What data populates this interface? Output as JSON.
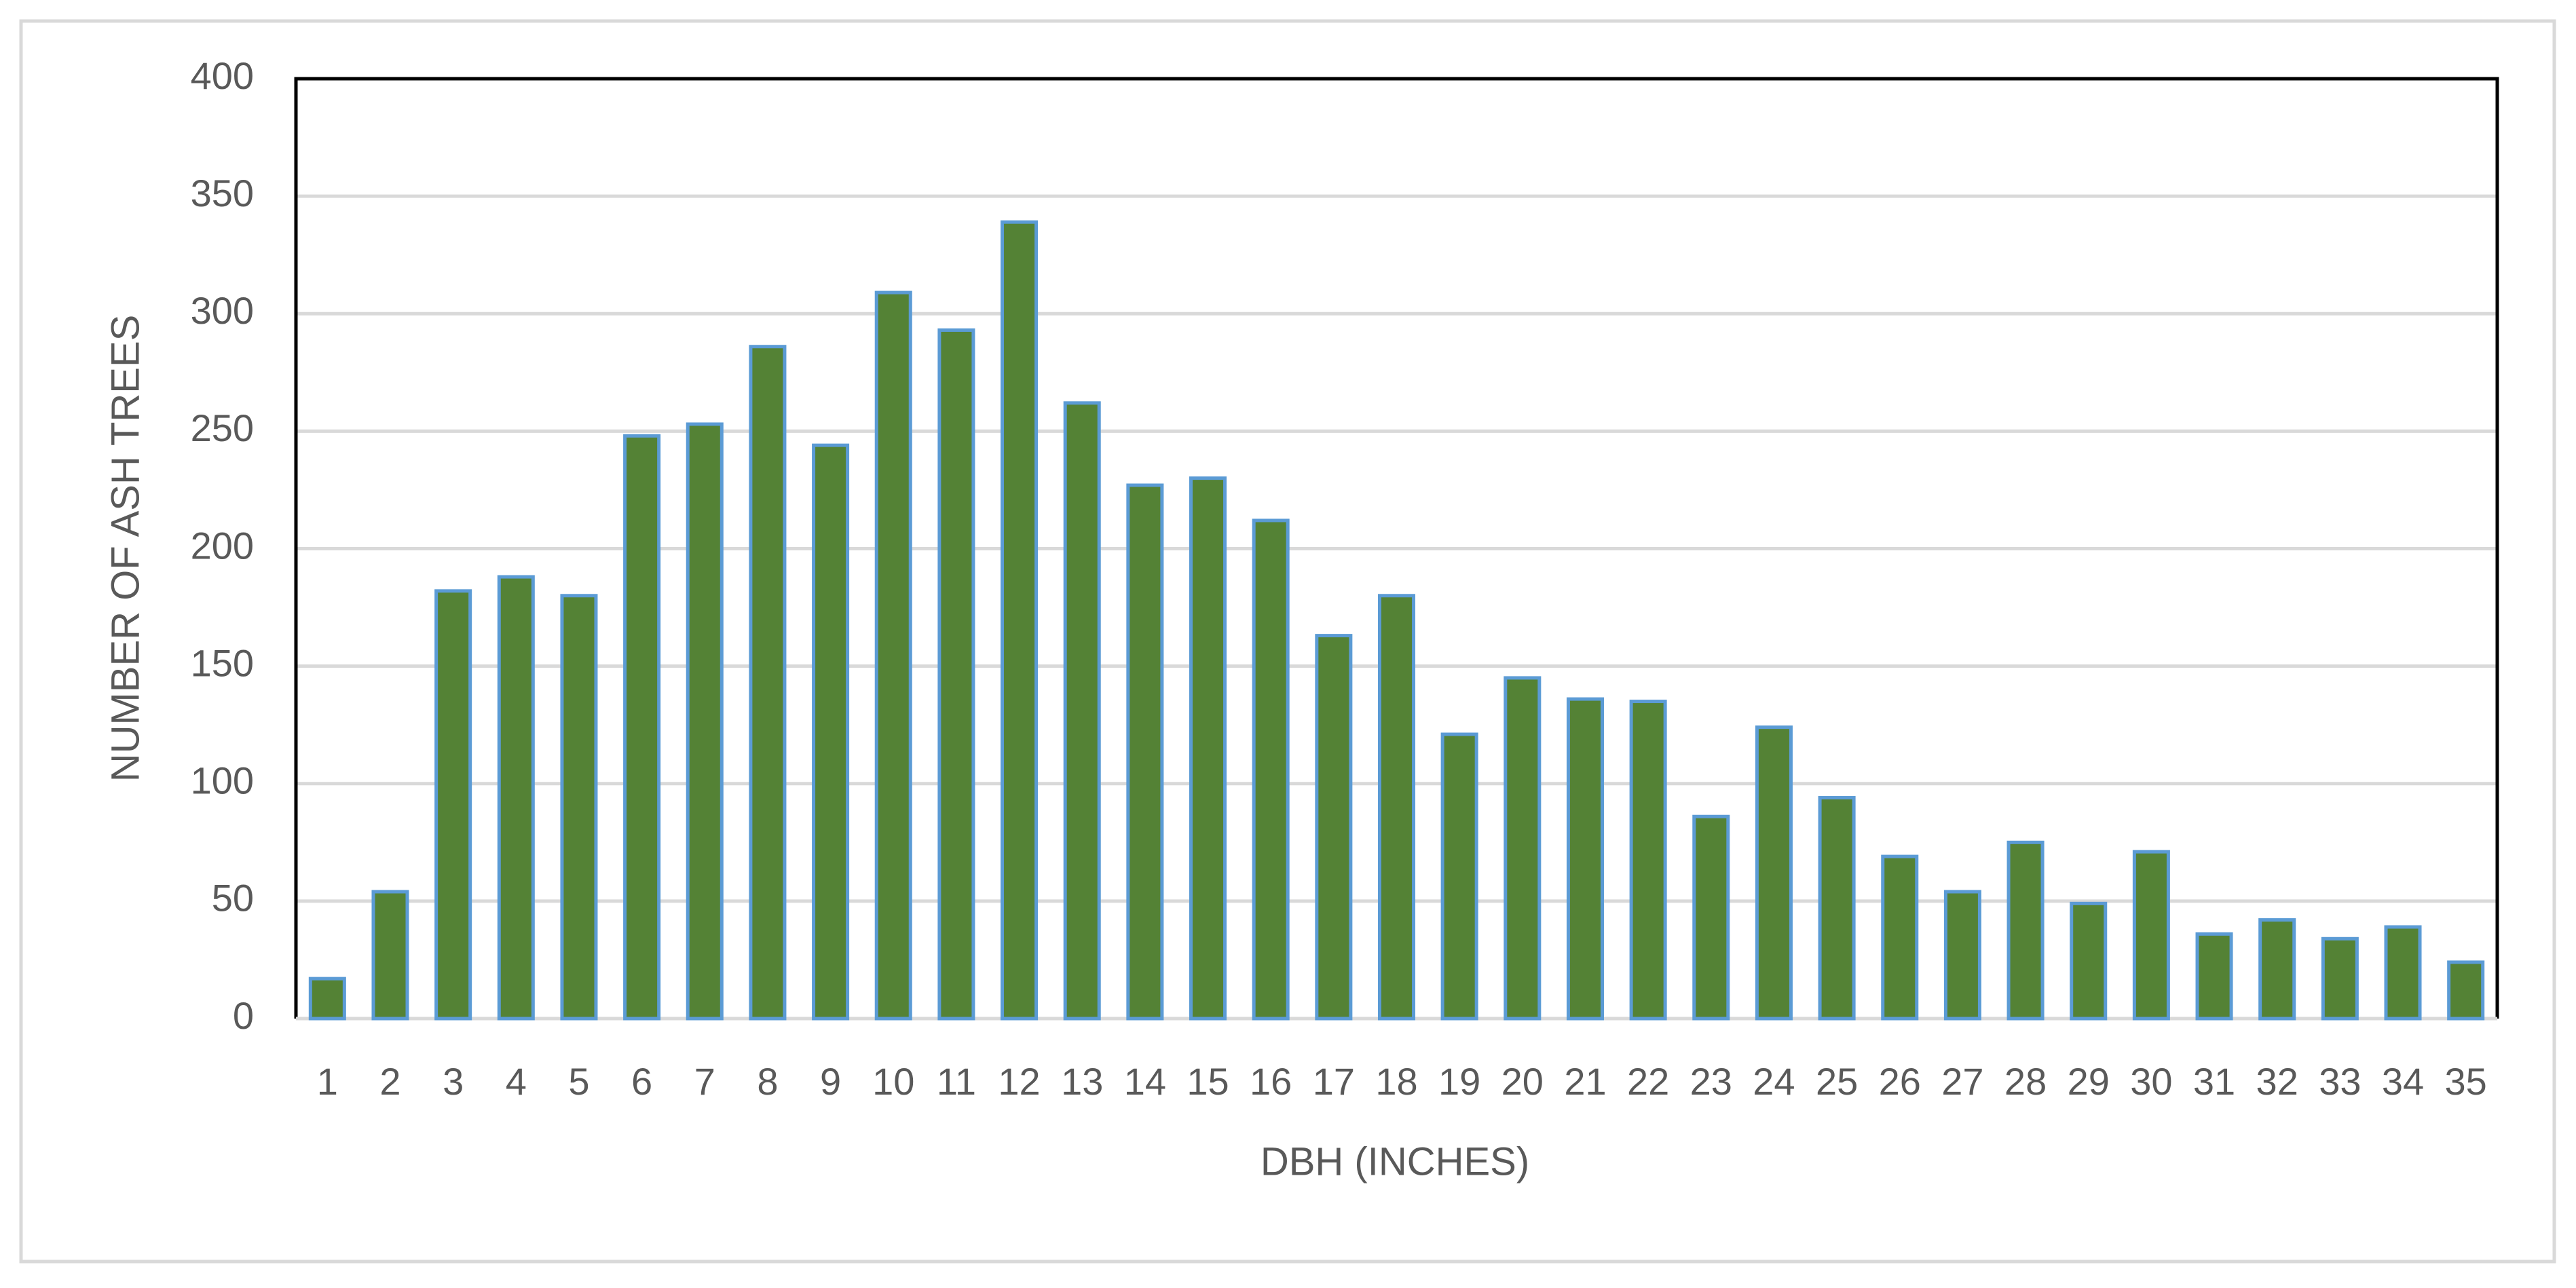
{
  "chart_data": {
    "type": "bar",
    "categories": [
      "1",
      "2",
      "3",
      "4",
      "5",
      "6",
      "7",
      "8",
      "9",
      "10",
      "11",
      "12",
      "13",
      "14",
      "15",
      "16",
      "17",
      "18",
      "19",
      "20",
      "21",
      "22",
      "23",
      "24",
      "25",
      "26",
      "27",
      "28",
      "29",
      "30",
      "31",
      "32",
      "33",
      "34",
      "35"
    ],
    "values": [
      17,
      54,
      182,
      188,
      180,
      248,
      253,
      286,
      244,
      309,
      293,
      339,
      262,
      227,
      230,
      212,
      163,
      180,
      121,
      145,
      136,
      135,
      86,
      124,
      94,
      69,
      54,
      75,
      49,
      71,
      36,
      42,
      34,
      39,
      24
    ],
    "color": "#548235",
    "edge_color": "#5b9bd5",
    "x_label": "DBH (INCHES)",
    "y_label": "NUMBER OF ASH TREES",
    "ylim": [
      0,
      400
    ],
    "yticks": [
      0,
      50,
      100,
      150,
      200,
      250,
      300,
      350,
      400
    ],
    "grid": true
  }
}
